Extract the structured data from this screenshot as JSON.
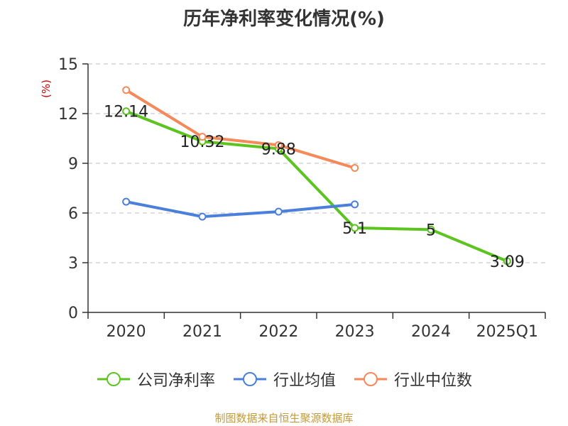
{
  "chart_data": {
    "type": "line",
    "title": "历年净利率变化情况(%)",
    "ylabel": "(%)",
    "xlabel": "",
    "categories": [
      "2020",
      "2021",
      "2022",
      "2023",
      "2024",
      "2025Q1"
    ],
    "ylim": [
      0,
      15
    ],
    "yticks": [
      0,
      3,
      6,
      9,
      12,
      15
    ],
    "grid": true,
    "legend_position": "bottom",
    "series": [
      {
        "name": "公司净利率",
        "color": "#5cc41f",
        "values": [
          12.14,
          10.32,
          9.88,
          5.1,
          5,
          3.09
        ],
        "labels": [
          "12.14",
          "10.32",
          "9.88",
          "5.1",
          "5",
          "3.09"
        ]
      },
      {
        "name": "行业均值",
        "color": "#4a7fdc",
        "values": [
          6.68,
          5.78,
          6.08,
          6.52,
          null,
          null
        ]
      },
      {
        "name": "行业中位数",
        "color": "#f5895a",
        "values": [
          13.42,
          10.6,
          10.1,
          8.72,
          null,
          null
        ]
      }
    ]
  },
  "source_note": "制图数据来自恒生聚源数据库"
}
